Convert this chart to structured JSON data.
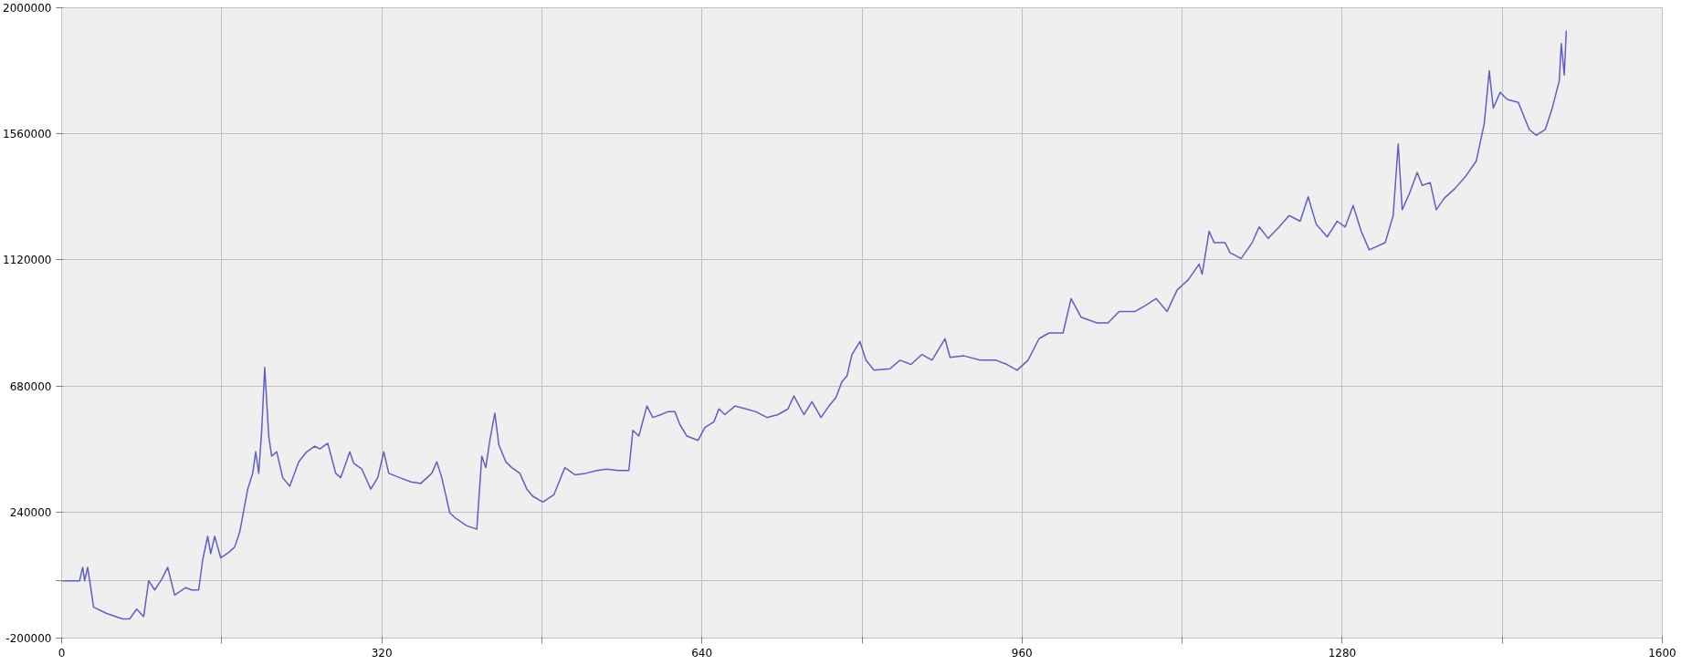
{
  "chart_data": {
    "type": "line",
    "line_style": "solid",
    "marker": "none",
    "grid": true,
    "xlim": [
      0,
      1600
    ],
    "ylim": [
      -200000,
      2000000
    ],
    "xticks": [
      0,
      {
        "value": 160,
        "label": null
      },
      320,
      {
        "value": 480,
        "label": null
      },
      640,
      {
        "value": 800,
        "label": null
      },
      960,
      {
        "value": 1120,
        "label": null
      },
      1280,
      {
        "value": 1440,
        "label": null
      },
      1600
    ],
    "yticks": [
      -200000,
      {
        "value": 0,
        "label": null
      },
      240000,
      680000,
      1120000,
      1560000,
      2000000
    ],
    "series": [
      {
        "color": "#5f5fc4",
        "x": [
          0,
          18,
          21,
          23,
          26,
          32,
          45,
          61,
          68,
          75,
          82,
          87,
          93,
          100,
          106,
          113,
          124,
          130,
          137,
          141,
          146,
          149,
          153,
          159,
          167,
          173,
          178,
          186,
          191,
          194,
          197,
          200,
          203,
          207,
          210,
          215,
          221,
          228,
          237,
          245,
          253,
          258,
          266,
          274,
          279,
          288,
          292,
          300,
          309,
          316,
          322,
          327,
          338,
          349,
          359,
          370,
          375,
          380,
          388,
          394,
          405,
          415,
          420,
          424,
          428,
          433,
          437,
          444,
          450,
          458,
          465,
          471,
          481,
          492,
          503,
          513,
          524,
          535,
          545,
          556,
          567,
          571,
          577,
          585,
          591,
          599,
          606,
          613,
          618,
          625,
          636,
          643,
          652,
          657,
          663,
          673,
          684,
          694,
          705,
          716,
          726,
          732,
          742,
          750,
          759,
          767,
          774,
          780,
          785,
          790,
          798,
          804,
          812,
          828,
          838,
          849,
          860,
          870,
          883,
          888,
          902,
          918,
          934,
          945,
          955,
          966,
          977,
          987,
          1001,
          1009,
          1019,
          1035,
          1046,
          1057,
          1073,
          1083,
          1094,
          1105,
          1115,
          1126,
          1137,
          1140,
          1147,
          1152,
          1163,
          1168,
          1179,
          1190,
          1197,
          1206,
          1217,
          1227,
          1238,
          1246,
          1254,
          1265,
          1275,
          1283,
          1291,
          1299,
          1307,
          1323,
          1331,
          1336,
          1340,
          1347,
          1355,
          1360,
          1368,
          1374,
          1382,
          1393,
          1403,
          1414,
          1422,
          1427,
          1431,
          1438,
          1445,
          1456,
          1467,
          1474,
          1483,
          1490,
          1497,
          1499,
          1502,
          1504
        ],
        "values": [
          0,
          0,
          47000,
          0,
          47000,
          -92000,
          -114000,
          -133000,
          -133000,
          -99000,
          -125000,
          0,
          -32000,
          5000,
          47000,
          -50000,
          -24000,
          -32000,
          -32000,
          73000,
          155000,
          95000,
          155000,
          80000,
          99000,
          118000,
          170000,
          320000,
          375000,
          450000,
          375000,
          525000,
          745000,
          505000,
          435000,
          450000,
          360000,
          330000,
          415000,
          450000,
          470000,
          460000,
          480000,
          375000,
          360000,
          450000,
          410000,
          390000,
          320000,
          360000,
          450000,
          375000,
          360000,
          345000,
          340000,
          375000,
          415000,
          360000,
          237000,
          218000,
          192000,
          180000,
          435000,
          395000,
          490000,
          585000,
          475000,
          415000,
          395000,
          375000,
          320000,
          295000,
          275000,
          300000,
          395000,
          370000,
          375000,
          385000,
          390000,
          385000,
          385000,
          525000,
          505000,
          610000,
          570000,
          580000,
          590000,
          590000,
          545000,
          505000,
          490000,
          535000,
          555000,
          600000,
          580000,
          610000,
          600000,
          590000,
          570000,
          580000,
          600000,
          645000,
          580000,
          625000,
          570000,
          610000,
          640000,
          695000,
          715000,
          790000,
          835000,
          770000,
          735000,
          740000,
          770000,
          755000,
          790000,
          770000,
          845000,
          780000,
          785000,
          770000,
          770000,
          755000,
          735000,
          770000,
          845000,
          865000,
          865000,
          985000,
          920000,
          900000,
          900000,
          940000,
          940000,
          960000,
          985000,
          940000,
          1015000,
          1050000,
          1105000,
          1070000,
          1220000,
          1180000,
          1180000,
          1145000,
          1125000,
          1180000,
          1235000,
          1195000,
          1235000,
          1275000,
          1255000,
          1340000,
          1245000,
          1200000,
          1255000,
          1235000,
          1310000,
          1220000,
          1155000,
          1180000,
          1275000,
          1525000,
          1295000,
          1350000,
          1425000,
          1380000,
          1390000,
          1295000,
          1335000,
          1370000,
          1410000,
          1465000,
          1595000,
          1780000,
          1650000,
          1705000,
          1680000,
          1670000,
          1575000,
          1555000,
          1575000,
          1650000,
          1745000,
          1875000,
          1765000,
          1920000
        ]
      }
    ]
  }
}
